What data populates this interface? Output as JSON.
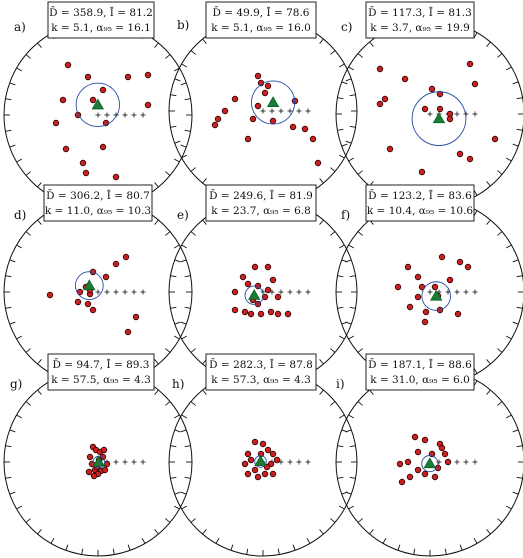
{
  "chart_data": [
    {
      "type": "scatter",
      "projection": "equal-area stereonet",
      "panel": "a)",
      "stat_line1": "D̄ = 358.9, Ī = 81.2",
      "stat_line2": "k = 5.1, α₉₅ = 16.1",
      "mean": {
        "dec": 358.9,
        "inc": 81.2,
        "alpha95": 16.1
      },
      "points": [
        [
          -30,
          -50
        ],
        [
          -10,
          -38
        ],
        [
          30,
          -38
        ],
        [
          50,
          -40
        ],
        [
          5,
          -25
        ],
        [
          -35,
          -15
        ],
        [
          -20,
          0
        ],
        [
          -42,
          8
        ],
        [
          8,
          8
        ],
        [
          5,
          32
        ],
        [
          -32,
          34
        ],
        [
          -15,
          48
        ],
        [
          -12,
          58
        ],
        [
          18,
          62
        ],
        [
          50,
          -10
        ],
        [
          -5,
          -15
        ]
      ]
    },
    {
      "type": "scatter",
      "projection": "equal-area stereonet",
      "panel": "b)",
      "stat_line1": "D̄ = 49.9, Ī = 78.6",
      "stat_line2": "k = 5.1, α₉₅ = 16.0",
      "mean": {
        "dec": 49.9,
        "inc": 78.6,
        "alpha95": 16.0
      },
      "points": [
        [
          -5,
          -35
        ],
        [
          -2,
          -28
        ],
        [
          5,
          -25
        ],
        [
          2,
          -18
        ],
        [
          -28,
          -12
        ],
        [
          -38,
          0
        ],
        [
          -45,
          8
        ],
        [
          -48,
          14
        ],
        [
          -5,
          -5
        ],
        [
          -10,
          8
        ],
        [
          -15,
          28
        ],
        [
          30,
          16
        ],
        [
          42,
          18
        ],
        [
          50,
          28
        ],
        [
          32,
          -10
        ],
        [
          55,
          52
        ],
        [
          10,
          10
        ]
      ]
    },
    {
      "type": "scatter",
      "projection": "equal-area stereonet",
      "panel": "c)",
      "stat_line1": "D̄ = 117.3, Ī = 81.3",
      "stat_line2": "k = 3.7, α₉₅ = 19.9",
      "mean": {
        "dec": 117.3,
        "inc": 81.3,
        "alpha95": 19.9
      },
      "points": [
        [
          -50,
          -45
        ],
        [
          40,
          -50
        ],
        [
          -25,
          -35
        ],
        [
          2,
          -25
        ],
        [
          45,
          -30
        ],
        [
          -45,
          -15
        ],
        [
          10,
          -20
        ],
        [
          -50,
          -10
        ],
        [
          10,
          -5
        ],
        [
          20,
          0
        ],
        [
          -5,
          -5
        ],
        [
          65,
          25
        ],
        [
          -40,
          35
        ],
        [
          30,
          40
        ],
        [
          40,
          45
        ],
        [
          -8,
          58
        ],
        [
          20,
          5
        ]
      ]
    },
    {
      "type": "scatter",
      "projection": "equal-area stereonet",
      "panel": "d)",
      "stat_line1": "D̄ = 306.2, Ī = 80.7",
      "stat_line2": "k = 11.0, α₉₅ = 10.3",
      "mean": {
        "dec": 306.2,
        "inc": 80.7,
        "alpha95": 10.3
      },
      "points": [
        [
          28,
          -35
        ],
        [
          18,
          -28
        ],
        [
          -5,
          -20
        ],
        [
          8,
          -15
        ],
        [
          -12,
          -5
        ],
        [
          -18,
          0
        ],
        [
          -8,
          2
        ],
        [
          -48,
          3
        ],
        [
          -20,
          10
        ],
        [
          -10,
          12
        ],
        [
          -5,
          18
        ],
        [
          38,
          25
        ],
        [
          30,
          40
        ],
        [
          -8,
          -2
        ]
      ]
    },
    {
      "type": "scatter",
      "projection": "equal-area stereonet",
      "panel": "e)",
      "stat_line1": "D̄ = 249.6, Ī = 81.9",
      "stat_line2": "k = 23.7, α₉₅ = 6.8",
      "mean": {
        "dec": 249.6,
        "inc": 81.9,
        "alpha95": 6.8
      },
      "points": [
        [
          -8,
          -25
        ],
        [
          5,
          -25
        ],
        [
          -20,
          -15
        ],
        [
          10,
          -12
        ],
        [
          -28,
          0
        ],
        [
          -15,
          -8
        ],
        [
          5,
          -2
        ],
        [
          15,
          5
        ],
        [
          -10,
          8
        ],
        [
          -5,
          12
        ],
        [
          -28,
          18
        ],
        [
          -18,
          20
        ],
        [
          -12,
          22
        ],
        [
          -2,
          22
        ],
        [
          8,
          20
        ],
        [
          15,
          22
        ],
        [
          25,
          22
        ],
        [
          -5,
          -6
        ],
        [
          2,
          5
        ]
      ]
    },
    {
      "type": "scatter",
      "projection": "equal-area stereonet",
      "panel": "f)",
      "stat_line1": "D̄ = 123.2, Ī = 83.6",
      "stat_line2": "k = 10.4, α₉₅ = 10.6",
      "mean": {
        "dec": 123.2,
        "inc": 83.6,
        "alpha95": 10.6
      },
      "points": [
        [
          12,
          -35
        ],
        [
          30,
          -30
        ],
        [
          38,
          -25
        ],
        [
          -22,
          -25
        ],
        [
          -12,
          -15
        ],
        [
          20,
          -12
        ],
        [
          -32,
          -5
        ],
        [
          5,
          -5
        ],
        [
          -12,
          5
        ],
        [
          -20,
          15
        ],
        [
          10,
          18
        ],
        [
          -5,
          30
        ],
        [
          28,
          22
        ],
        [
          -8,
          -5
        ],
        [
          8,
          4
        ],
        [
          -4,
          20
        ]
      ]
    },
    {
      "type": "scatter",
      "projection": "equal-area stereonet",
      "panel": "g)",
      "stat_line1": "D̄ = 94.7, Ī = 89.3",
      "stat_line2": "k = 57.5, α₉₅ = 4.3",
      "mean": {
        "dec": 94.7,
        "inc": 89.3,
        "alpha95": 4.3
      },
      "points": [
        [
          -5,
          -15
        ],
        [
          -2,
          -12
        ],
        [
          2,
          -10
        ],
        [
          -8,
          -5
        ],
        [
          5,
          -5
        ],
        [
          -6,
          2
        ],
        [
          -3,
          8
        ],
        [
          3,
          9
        ],
        [
          7,
          8
        ],
        [
          0,
          12
        ],
        [
          -4,
          14
        ],
        [
          6,
          -12
        ],
        [
          9,
          2
        ],
        [
          -9,
          10
        ],
        [
          1,
          -2
        ],
        [
          -1,
          5
        ]
      ]
    },
    {
      "type": "scatter",
      "projection": "equal-area stereonet",
      "panel": "h)",
      "stat_line1": "D̄ = 282.3, Ī = 87.8",
      "stat_line2": "k = 57.3, α₉₅ = 4.3",
      "mean": {
        "dec": 282.3,
        "inc": 87.8,
        "alpha95": 4.3
      },
      "points": [
        [
          -8,
          -20
        ],
        [
          0,
          -18
        ],
        [
          5,
          -12
        ],
        [
          -15,
          -8
        ],
        [
          10,
          -8
        ],
        [
          -12,
          -2
        ],
        [
          8,
          2
        ],
        [
          -8,
          8
        ],
        [
          -15,
          12
        ],
        [
          2,
          12
        ],
        [
          10,
          12
        ],
        [
          -5,
          15
        ],
        [
          -2,
          -8
        ],
        [
          4,
          5
        ],
        [
          -18,
          2
        ],
        [
          14,
          -2
        ]
      ]
    },
    {
      "type": "scatter",
      "projection": "equal-area stereonet",
      "panel": "i)",
      "stat_line1": "D̄ = 187.1, Ī = 88.6",
      "stat_line2": "k = 31.0, α₉₅ = 6.0",
      "mean": {
        "dec": 187.1,
        "inc": 88.6,
        "alpha95": 6.0
      },
      "points": [
        [
          -15,
          -25
        ],
        [
          -5,
          -22
        ],
        [
          10,
          -18
        ],
        [
          -12,
          -10
        ],
        [
          15,
          -8
        ],
        [
          -30,
          2
        ],
        [
          -22,
          0
        ],
        [
          18,
          0
        ],
        [
          -12,
          8
        ],
        [
          -5,
          12
        ],
        [
          5,
          15
        ],
        [
          -20,
          15
        ],
        [
          -28,
          20
        ],
        [
          2,
          -8
        ],
        [
          8,
          6
        ],
        [
          12,
          -14
        ]
      ]
    }
  ],
  "colors": {
    "point_fill": "#cc1f1f",
    "mean_fill": "#1f7a3a",
    "circle": "#2a4fa8",
    "frame": "#111111",
    "low_fill": "#7a7ad8"
  }
}
